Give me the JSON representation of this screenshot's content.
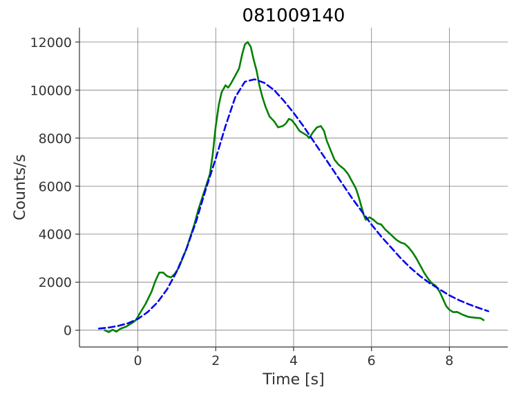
{
  "chart_data": {
    "type": "line",
    "title": "081009140",
    "xlabel": "Time [s]",
    "ylabel": "Counts/s",
    "xlim": [
      -1.5,
      9.5
    ],
    "ylim": [
      -700,
      12600
    ],
    "x_ticks": [
      0,
      2,
      4,
      6,
      8
    ],
    "y_ticks": [
      0,
      2000,
      4000,
      6000,
      8000,
      10000,
      12000
    ],
    "grid": true,
    "series": [
      {
        "style": "solid",
        "color": "#008000",
        "points": [
          [
            -0.85,
            0
          ],
          [
            -0.75,
            -80
          ],
          [
            -0.65,
            20
          ],
          [
            -0.55,
            -60
          ],
          [
            -0.45,
            60
          ],
          [
            -0.3,
            150
          ],
          [
            -0.15,
            300
          ],
          [
            -0.05,
            420
          ],
          [
            0.05,
            700
          ],
          [
            0.2,
            1100
          ],
          [
            0.35,
            1600
          ],
          [
            0.45,
            2050
          ],
          [
            0.55,
            2400
          ],
          [
            0.65,
            2400
          ],
          [
            0.75,
            2250
          ],
          [
            0.85,
            2200
          ],
          [
            0.95,
            2350
          ],
          [
            1.05,
            2600
          ],
          [
            1.15,
            3000
          ],
          [
            1.25,
            3400
          ],
          [
            1.35,
            3900
          ],
          [
            1.45,
            4400
          ],
          [
            1.55,
            5000
          ],
          [
            1.65,
            5500
          ],
          [
            1.75,
            6000
          ],
          [
            1.85,
            6500
          ],
          [
            1.92,
            7300
          ],
          [
            2.0,
            8500
          ],
          [
            2.08,
            9400
          ],
          [
            2.15,
            9900
          ],
          [
            2.25,
            10200
          ],
          [
            2.32,
            10100
          ],
          [
            2.4,
            10300
          ],
          [
            2.5,
            10600
          ],
          [
            2.6,
            10900
          ],
          [
            2.68,
            11500
          ],
          [
            2.75,
            11900
          ],
          [
            2.82,
            12000
          ],
          [
            2.9,
            11800
          ],
          [
            2.97,
            11300
          ],
          [
            3.05,
            10800
          ],
          [
            3.12,
            10200
          ],
          [
            3.2,
            9700
          ],
          [
            3.28,
            9300
          ],
          [
            3.38,
            8900
          ],
          [
            3.5,
            8700
          ],
          [
            3.6,
            8450
          ],
          [
            3.72,
            8500
          ],
          [
            3.8,
            8600
          ],
          [
            3.88,
            8800
          ],
          [
            3.95,
            8750
          ],
          [
            4.05,
            8550
          ],
          [
            4.15,
            8300
          ],
          [
            4.25,
            8200
          ],
          [
            4.35,
            8100
          ],
          [
            4.4,
            8000
          ],
          [
            4.5,
            8250
          ],
          [
            4.6,
            8450
          ],
          [
            4.7,
            8500
          ],
          [
            4.78,
            8300
          ],
          [
            4.85,
            7900
          ],
          [
            4.95,
            7500
          ],
          [
            5.05,
            7100
          ],
          [
            5.15,
            6900
          ],
          [
            5.3,
            6700
          ],
          [
            5.4,
            6500
          ],
          [
            5.5,
            6200
          ],
          [
            5.6,
            5900
          ],
          [
            5.68,
            5500
          ],
          [
            5.75,
            5100
          ],
          [
            5.8,
            4800
          ],
          [
            5.85,
            4600
          ],
          [
            5.95,
            4700
          ],
          [
            6.05,
            4600
          ],
          [
            6.15,
            4450
          ],
          [
            6.25,
            4400
          ],
          [
            6.35,
            4200
          ],
          [
            6.45,
            4050
          ],
          [
            6.55,
            3900
          ],
          [
            6.65,
            3750
          ],
          [
            6.75,
            3650
          ],
          [
            6.85,
            3600
          ],
          [
            6.95,
            3450
          ],
          [
            7.05,
            3250
          ],
          [
            7.15,
            3000
          ],
          [
            7.25,
            2700
          ],
          [
            7.35,
            2400
          ],
          [
            7.45,
            2150
          ],
          [
            7.55,
            1950
          ],
          [
            7.65,
            1850
          ],
          [
            7.75,
            1600
          ],
          [
            7.85,
            1250
          ],
          [
            7.92,
            1000
          ],
          [
            8.0,
            850
          ],
          [
            8.1,
            750
          ],
          [
            8.2,
            760
          ],
          [
            8.35,
            640
          ],
          [
            8.5,
            550
          ],
          [
            8.65,
            520
          ],
          [
            8.8,
            500
          ],
          [
            8.88,
            420
          ]
        ]
      },
      {
        "style": "dashed",
        "color": "#0000ee",
        "points": [
          [
            -1.0,
            70
          ],
          [
            -0.75,
            110
          ],
          [
            -0.5,
            180
          ],
          [
            -0.25,
            290
          ],
          [
            0.0,
            470
          ],
          [
            0.25,
            750
          ],
          [
            0.5,
            1150
          ],
          [
            0.75,
            1700
          ],
          [
            1.0,
            2450
          ],
          [
            1.25,
            3400
          ],
          [
            1.5,
            4550
          ],
          [
            1.75,
            5900
          ],
          [
            2.0,
            7150
          ],
          [
            2.25,
            8500
          ],
          [
            2.5,
            9700
          ],
          [
            2.75,
            10350
          ],
          [
            3.0,
            10450
          ],
          [
            3.25,
            10300
          ],
          [
            3.5,
            10000
          ],
          [
            3.75,
            9550
          ],
          [
            4.0,
            9050
          ],
          [
            4.25,
            8500
          ],
          [
            4.5,
            7900
          ],
          [
            4.75,
            7300
          ],
          [
            5.0,
            6700
          ],
          [
            5.25,
            6100
          ],
          [
            5.5,
            5500
          ],
          [
            5.75,
            4950
          ],
          [
            6.0,
            4400
          ],
          [
            6.25,
            3900
          ],
          [
            6.5,
            3450
          ],
          [
            6.75,
            3000
          ],
          [
            7.0,
            2600
          ],
          [
            7.25,
            2250
          ],
          [
            7.5,
            1950
          ],
          [
            7.75,
            1700
          ],
          [
            8.0,
            1450
          ],
          [
            8.25,
            1250
          ],
          [
            8.5,
            1080
          ],
          [
            8.75,
            930
          ],
          [
            9.0,
            790
          ]
        ]
      }
    ]
  }
}
